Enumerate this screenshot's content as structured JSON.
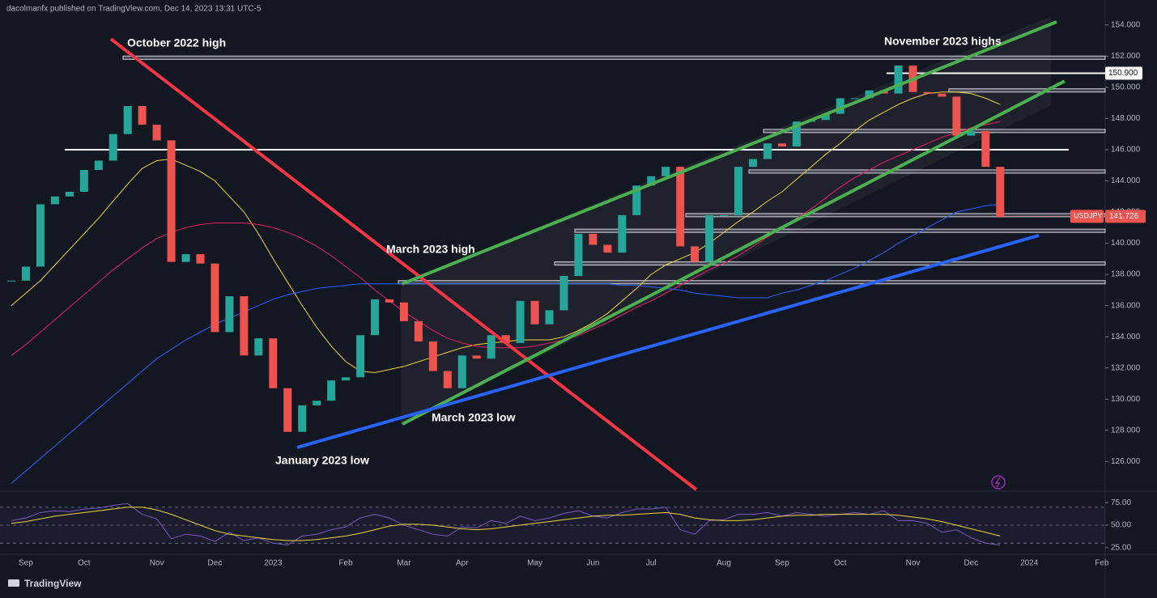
{
  "header": "dacolmanfx published on TradingView.com, Dec 14, 2023 13:31 UTC-5",
  "footer": "TradingView",
  "chart_data": [
    {
      "type": "candlestick",
      "symbol": "USDJPY",
      "up_color": "#26a69a",
      "down_color": "#ef5350",
      "categories": [
        null,
        "Sep",
        null,
        null,
        null,
        "Oct",
        null,
        null,
        null,
        null,
        "Nov",
        null,
        null,
        null,
        "Dec",
        null,
        null,
        null,
        "2023",
        null,
        null,
        null,
        null,
        "Feb",
        null,
        null,
        null,
        "Mar",
        null,
        null,
        null,
        "Apr",
        null,
        null,
        null,
        null,
        "May",
        null,
        null,
        null,
        "Jun",
        null,
        null,
        null,
        "Jul",
        null,
        null,
        null,
        null,
        "Aug",
        null,
        null,
        null,
        "Sep",
        null,
        null,
        null,
        "Oct",
        null,
        null,
        null,
        null,
        "Nov",
        null,
        null,
        null,
        "Dec",
        null,
        null,
        null,
        "2024",
        null,
        null,
        null,
        null,
        "Feb"
      ],
      "values": [
        137.6,
        138.5,
        142.5,
        143.0,
        143.3,
        144.7,
        145.3,
        147.0,
        148.8,
        147.6,
        146.6,
        138.8,
        139.3,
        138.7,
        134.3,
        136.6,
        132.8,
        133.9,
        130.7,
        127.9,
        129.6,
        129.9,
        131.2,
        131.4,
        134.1,
        136.4,
        136.2,
        135.0,
        133.7,
        131.8,
        130.7,
        132.8,
        132.6,
        134.1,
        133.6,
        136.3,
        134.8,
        135.7,
        137.9,
        140.6,
        139.9,
        139.4,
        141.8,
        143.7,
        144.3,
        144.9,
        139.8,
        138.8,
        141.8,
        141.8,
        144.9,
        145.4,
        146.4,
        146.2,
        147.8,
        147.9,
        148.3,
        149.3,
        149.3,
        149.8,
        149.6,
        151.4,
        149.7,
        149.6,
        149.4,
        146.9,
        147.2,
        144.9,
        141.7,
        null,
        null,
        null,
        null,
        null,
        null,
        null
      ],
      "overlays": [
        {
          "color": "#f0d43a",
          "values": [
            136.0,
            136.8,
            137.6,
            138.6,
            139.6,
            140.6,
            141.6,
            142.7,
            143.8,
            144.8,
            145.3,
            145.4,
            145.0,
            144.6,
            144.0,
            143.0,
            142.0,
            140.6,
            139.0,
            137.5,
            136.0,
            134.6,
            133.4,
            132.4,
            131.8,
            131.7,
            131.9,
            132.1,
            132.4,
            132.7,
            133.0,
            133.3,
            133.5,
            133.6,
            133.7,
            133.8,
            133.8,
            133.8,
            134.0,
            134.4,
            134.9,
            135.5,
            136.3,
            137.1,
            138.0,
            138.6,
            139.0,
            139.4,
            140.0,
            140.7,
            141.4,
            142.0,
            142.7,
            143.3,
            144.1,
            144.9,
            145.7,
            146.4,
            147.2,
            147.9,
            148.4,
            148.9,
            149.3,
            149.6,
            149.7,
            149.7,
            149.6,
            149.3,
            148.9,
            null,
            null,
            null,
            null,
            null,
            null,
            null
          ]
        },
        {
          "color": "#e91e63",
          "values": [
            132.8,
            133.5,
            134.3,
            135.1,
            135.9,
            136.7,
            137.5,
            138.3,
            139.0,
            139.7,
            140.3,
            140.7,
            141.0,
            141.2,
            141.3,
            141.3,
            141.3,
            141.2,
            141.0,
            140.7,
            140.3,
            139.8,
            139.2,
            138.5,
            137.8,
            137.0,
            136.3,
            135.6,
            135.0,
            134.4,
            133.9,
            133.6,
            133.4,
            133.3,
            133.3,
            133.3,
            133.4,
            133.6,
            133.8,
            134.1,
            134.5,
            134.9,
            135.4,
            135.9,
            136.3,
            136.8,
            137.3,
            137.8,
            138.3,
            138.7,
            139.2,
            139.8,
            140.4,
            141.0,
            141.6,
            142.2,
            142.9,
            143.6,
            144.2,
            144.7,
            145.2,
            145.6,
            146.0,
            146.4,
            146.8,
            147.1,
            147.4,
            147.6,
            147.8,
            null,
            null,
            null,
            null,
            null,
            null,
            null
          ]
        },
        {
          "color": "#2962ff",
          "values": [
            124.6,
            125.4,
            126.2,
            127.0,
            127.8,
            128.6,
            129.4,
            130.2,
            131.0,
            131.8,
            132.6,
            133.2,
            133.8,
            134.3,
            134.8,
            135.2,
            135.6,
            136.0,
            136.4,
            136.7,
            136.9,
            137.1,
            137.2,
            137.3,
            137.4,
            137.4,
            137.4,
            137.4,
            137.4,
            137.4,
            137.4,
            137.4,
            137.4,
            137.4,
            137.4,
            137.4,
            137.4,
            137.4,
            137.4,
            137.4,
            137.4,
            137.4,
            137.3,
            137.3,
            137.2,
            137.1,
            137.0,
            136.8,
            136.7,
            136.6,
            136.5,
            136.5,
            136.5,
            136.8,
            137.0,
            137.3,
            137.6,
            138.0,
            138.4,
            138.9,
            139.4,
            140.0,
            140.5,
            141.0,
            141.5,
            142.0,
            142.2,
            142.4,
            142.5,
            null,
            null,
            null,
            null,
            null,
            null,
            null
          ]
        }
      ],
      "ylim": [
        124.2,
        155.6
      ],
      "yticks": [
        {
          "value": 154,
          "label": "154.000"
        },
        {
          "value": 152,
          "label": "152.000"
        },
        {
          "value": 150,
          "label": "150.000"
        },
        {
          "value": 148,
          "label": "148.000"
        },
        {
          "value": 146,
          "label": "146.000"
        },
        {
          "value": 144,
          "label": "144.000"
        },
        {
          "value": 142,
          "label": "142.000"
        },
        {
          "value": 140,
          "label": "140.000"
        },
        {
          "value": 138,
          "label": "138.000"
        },
        {
          "value": 136,
          "label": "136.000"
        },
        {
          "value": 134,
          "label": "134.000"
        },
        {
          "value": 132,
          "label": "132.000"
        },
        {
          "value": 130,
          "label": "130.000"
        },
        {
          "value": 128,
          "label": "128.000"
        },
        {
          "value": 126,
          "label": "126.000"
        }
      ],
      "levels": [
        151.9,
        149.8,
        147.2,
        146.0,
        144.6,
        141.8,
        140.8,
        138.7,
        137.5
      ],
      "marked_level": {
        "value": 150.9,
        "label": "150.900"
      },
      "last_price": {
        "value": 141.726,
        "label": "141.726"
      },
      "trendlines": [
        {
          "color": "#f23645",
          "from": 153.1,
          "to": 124.2
        },
        {
          "color": "#4caf50",
          "from": 137.4,
          "to": 154.2
        },
        {
          "color": "#4caf50",
          "from": 128.4,
          "to": 150.4
        },
        {
          "color": "#2962ff",
          "from": 126.9,
          "to": 140.5
        }
      ],
      "annotations": [
        "October 2022 high",
        "November 2023 highs",
        "March 2023 high",
        "March 2023 low",
        "January 2023 low"
      ]
    },
    {
      "type": "line",
      "color": "#7e57c2",
      "signal_color": "#f0d43a",
      "values": [
        55,
        58,
        64,
        66,
        65,
        68,
        69,
        72,
        74,
        62,
        57,
        35,
        40,
        38,
        32,
        42,
        33,
        36,
        30,
        28,
        38,
        40,
        45,
        48,
        58,
        62,
        58,
        50,
        45,
        40,
        38,
        48,
        47,
        55,
        52,
        60,
        55,
        58,
        63,
        66,
        60,
        58,
        64,
        68,
        68,
        70,
        45,
        40,
        55,
        56,
        62,
        62,
        64,
        60,
        64,
        62,
        60,
        62,
        64,
        62,
        66,
        55,
        55,
        52,
        42,
        45,
        36,
        30,
        28,
        null,
        null,
        null,
        null,
        null,
        null,
        null
      ],
      "signal": [
        52,
        54,
        57,
        60,
        62,
        64,
        66,
        68,
        70,
        70,
        67,
        62,
        56,
        50,
        44,
        40,
        38,
        36,
        34,
        33,
        33,
        34,
        36,
        38,
        41,
        45,
        49,
        51,
        51,
        50,
        48,
        46,
        45,
        46,
        48,
        50,
        52,
        54,
        56,
        58,
        60,
        61,
        61,
        62,
        63,
        64,
        62,
        58,
        56,
        55,
        55,
        56,
        58,
        60,
        61,
        61,
        62,
        62,
        62,
        62,
        62,
        61,
        59,
        57,
        54,
        50,
        46,
        42,
        38,
        null,
        null,
        null,
        null,
        null,
        null,
        null
      ],
      "ylim": [
        17.7,
        87.7
      ],
      "yticks": [
        {
          "value": 75,
          "label": "75.00"
        },
        {
          "value": 50,
          "label": "50.00"
        },
        {
          "value": 25,
          "label": "25.00"
        }
      ],
      "levels": [
        70,
        50,
        30
      ]
    }
  ]
}
